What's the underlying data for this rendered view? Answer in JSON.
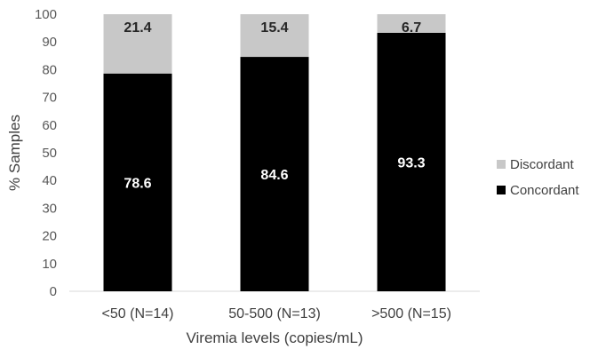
{
  "chart_data": {
    "type": "bar",
    "stacked": true,
    "percent_stacked": true,
    "categories": [
      "<50 (N=14)",
      "50-500 (N=13)",
      ">500 (N=15)"
    ],
    "series": [
      {
        "name": "Concordant",
        "values": [
          78.6,
          84.6,
          93.3
        ],
        "color": "#000000"
      },
      {
        "name": "Discordant",
        "values": [
          21.4,
          15.4,
          6.7
        ],
        "color": "#c8c8c8"
      }
    ],
    "xlabel": "Viremia levels (copies/mL)",
    "ylabel": "% Samples",
    "ylim": [
      0,
      100
    ],
    "yticks": [
      0,
      10,
      20,
      30,
      40,
      50,
      60,
      70,
      80,
      90,
      100
    ],
    "grid": false,
    "legend_position": "right"
  }
}
